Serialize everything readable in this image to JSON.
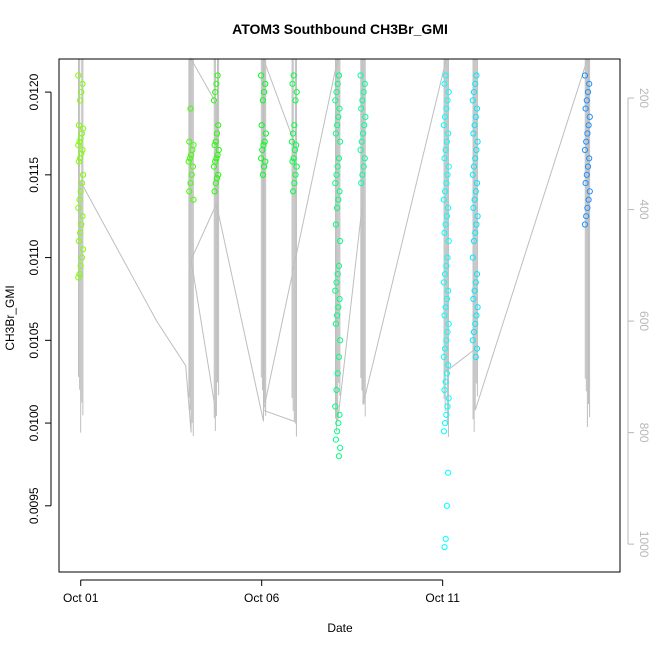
{
  "chart_data": {
    "type": "scatter",
    "title": "ATOM3 Southbound CH3Br_GMI",
    "xlabel": "Date",
    "ylabel": "CH3Br_GMI",
    "y2label": "",
    "x_ticks": [
      {
        "label": "Oct 01",
        "day": 1
      },
      {
        "label": "Oct 06",
        "day": 6
      },
      {
        "label": "Oct 11",
        "day": 11
      }
    ],
    "xlim_days": [
      0.4,
      15.9
    ],
    "ylim": [
      0.0091,
      0.0122
    ],
    "y_ticks": [
      "0.0095",
      "0.0100",
      "0.0105",
      "0.0110",
      "0.0115",
      "0.0120"
    ],
    "y2_inverted": true,
    "y2lim": [
      1050,
      130
    ],
    "y2_ticks": [
      "200",
      "400",
      "600",
      "800",
      "1000"
    ],
    "grid": false,
    "legend": "none",
    "colors": {
      "points_gradient": [
        "#7fff00",
        "#00ff40",
        "#00ffa0",
        "#00ffff",
        "#1e90ff"
      ],
      "pressure_line": "#bebebe"
    },
    "series": [
      {
        "color": "#80ff00",
        "x_day": 1.0,
        "values": [
          0.0121,
          0.01205,
          0.012,
          0.01195,
          0.0118,
          0.01178,
          0.01175,
          0.01172,
          0.0117,
          0.01168,
          0.01165,
          0.01163,
          0.0116,
          0.01158,
          0.0115,
          0.01145,
          0.0114,
          0.01135,
          0.0113,
          0.01125,
          0.0112,
          0.01115,
          0.0111,
          0.01105,
          0.011,
          0.01095,
          0.0109,
          0.01088
        ]
      },
      {
        "color": "#40ff00",
        "x_day": 4.05,
        "values": [
          0.0119,
          0.0117,
          0.01168,
          0.01165,
          0.01162,
          0.0116,
          0.01158,
          0.01155,
          0.0115,
          0.01145,
          0.0114,
          0.01135
        ]
      },
      {
        "color": "#20ff00",
        "x_day": 4.75,
        "values": [
          0.0121,
          0.01205,
          0.012,
          0.01195,
          0.0118,
          0.01175,
          0.0117,
          0.01168,
          0.01165,
          0.01162,
          0.0116,
          0.01158,
          0.01155,
          0.0115,
          0.01148,
          0.01145,
          0.0114
        ]
      },
      {
        "color": "#00ff20",
        "x_day": 6.05,
        "values": [
          0.0121,
          0.01205,
          0.012,
          0.01195,
          0.0118,
          0.01175,
          0.0117,
          0.01168,
          0.01165,
          0.0116,
          0.01158,
          0.01155,
          0.0115
        ]
      },
      {
        "color": "#00ff40",
        "x_day": 6.9,
        "values": [
          0.0121,
          0.01205,
          0.012,
          0.01195,
          0.0118,
          0.01175,
          0.0117,
          0.01168,
          0.01165,
          0.0116,
          0.01158,
          0.01155,
          0.0115,
          0.01145,
          0.0114
        ]
      },
      {
        "color": "#00ff80",
        "x_day": 8.1,
        "values": [
          0.0121,
          0.01205,
          0.012,
          0.01195,
          0.0119,
          0.01185,
          0.0118,
          0.01175,
          0.0117,
          0.0116,
          0.01155,
          0.0115,
          0.01145,
          0.0114,
          0.01135,
          0.0113,
          0.0112,
          0.0111,
          0.01095,
          0.0109,
          0.01085,
          0.0108,
          0.01075,
          0.0107,
          0.01065,
          0.0106,
          0.0105,
          0.0104,
          0.0103,
          0.0102,
          0.0101,
          0.01005,
          0.01,
          0.00995,
          0.0099,
          0.00985,
          0.0098
        ]
      },
      {
        "color": "#00ffa0",
        "x_day": 8.8,
        "values": [
          0.0121,
          0.01205,
          0.012,
          0.01195,
          0.0119,
          0.01185,
          0.0118,
          0.01175,
          0.0117,
          0.01165,
          0.0116,
          0.01155,
          0.0115,
          0.01145
        ]
      },
      {
        "color": "#00ffff",
        "x_day": 11.1,
        "values": [
          0.0121,
          0.01205,
          0.012,
          0.01195,
          0.0119,
          0.01185,
          0.0118,
          0.01175,
          0.0117,
          0.01165,
          0.0116,
          0.01155,
          0.0115,
          0.01145,
          0.0114,
          0.01135,
          0.0113,
          0.01125,
          0.0112,
          0.01115,
          0.0111,
          0.011,
          0.01095,
          0.0109,
          0.01085,
          0.0108,
          0.01075,
          0.0107,
          0.01065,
          0.0106,
          0.01055,
          0.0105,
          0.01045,
          0.0104,
          0.01035,
          0.0103,
          0.01025,
          0.0102,
          0.01015,
          0.0101,
          0.01005,
          0.01,
          0.00995,
          0.0097,
          0.0095,
          0.0093,
          0.00925
        ]
      },
      {
        "color": "#00e8ff",
        "x_day": 11.9,
        "values": [
          0.0121,
          0.01205,
          0.012,
          0.01195,
          0.0119,
          0.01185,
          0.0118,
          0.01175,
          0.0117,
          0.01165,
          0.0116,
          0.01155,
          0.0115,
          0.01145,
          0.0114,
          0.01135,
          0.0113,
          0.01125,
          0.0112,
          0.01115,
          0.0111,
          0.011,
          0.0109,
          0.01085,
          0.0108,
          0.01075,
          0.0107,
          0.01065,
          0.0106,
          0.01055,
          0.0105,
          0.01045,
          0.0104
        ]
      },
      {
        "color": "#1e90ff",
        "x_day": 15.0,
        "values": [
          0.0121,
          0.01205,
          0.012,
          0.01195,
          0.0119,
          0.01185,
          0.0118,
          0.01175,
          0.0117,
          0.01165,
          0.0116,
          0.01155,
          0.0115,
          0.01145,
          0.0114,
          0.01135,
          0.0113,
          0.01125,
          0.0112
        ]
      }
    ],
    "pressure_trace": [
      {
        "day": 1.0,
        "hpa": 800
      },
      {
        "day": 1.0,
        "hpa": 350
      },
      {
        "day": 3.1,
        "hpa": 600
      },
      {
        "day": 3.9,
        "hpa": 680
      },
      {
        "day": 4.05,
        "hpa": 800
      },
      {
        "day": 4.05,
        "hpa": 130
      },
      {
        "day": 4.75,
        "hpa": 210
      },
      {
        "day": 4.75,
        "hpa": 770
      },
      {
        "day": 4.05,
        "hpa": 490
      },
      {
        "day": 4.75,
        "hpa": 390
      },
      {
        "day": 6.05,
        "hpa": 780
      },
      {
        "day": 6.05,
        "hpa": 130
      },
      {
        "day": 6.9,
        "hpa": 280
      },
      {
        "day": 6.9,
        "hpa": 780
      },
      {
        "day": 6.05,
        "hpa": 760
      },
      {
        "day": 8.1,
        "hpa": 130
      },
      {
        "day": 8.1,
        "hpa": 780
      },
      {
        "day": 8.8,
        "hpa": 380
      },
      {
        "day": 8.8,
        "hpa": 130
      },
      {
        "day": 8.8,
        "hpa": 750
      },
      {
        "day": 11.1,
        "hpa": 130
      },
      {
        "day": 11.1,
        "hpa": 690
      },
      {
        "day": 11.9,
        "hpa": 650
      },
      {
        "day": 11.9,
        "hpa": 130
      },
      {
        "day": 11.9,
        "hpa": 760
      },
      {
        "day": 15.0,
        "hpa": 130
      },
      {
        "day": 15.0,
        "hpa": 790
      }
    ]
  }
}
